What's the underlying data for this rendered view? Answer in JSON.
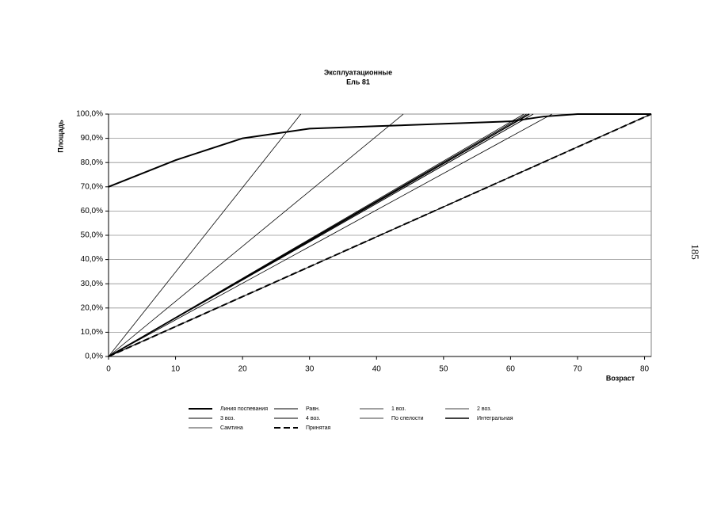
{
  "chart_data": {
    "type": "line",
    "title": "Эксплуатационные",
    "subtitle": "Ель 81",
    "y_label": "Площадь",
    "x_label": "Возраст",
    "xlim": [
      0,
      81
    ],
    "xticks": [
      0,
      10,
      20,
      30,
      40,
      50,
      60,
      70,
      80
    ],
    "ylim": [
      0,
      100
    ],
    "yticks": [
      {
        "value": 0,
        "label": "0,0%"
      },
      {
        "value": 10,
        "label": "10,0%"
      },
      {
        "value": 20,
        "label": "20,0%"
      },
      {
        "value": 30,
        "label": "30,0%"
      },
      {
        "value": 40,
        "label": "40,0%"
      },
      {
        "value": 50,
        "label": "50,0%"
      },
      {
        "value": 60,
        "label": "60,0%"
      },
      {
        "value": 70,
        "label": "70,0%"
      },
      {
        "value": 80,
        "label": "80,0%"
      },
      {
        "value": 90,
        "label": "90,0%"
      },
      {
        "value": 100,
        "label": "100,0%"
      }
    ],
    "grid": true,
    "series": [
      {
        "name": "Линия поспевания",
        "color": "#000000",
        "line_width": 2,
        "dashed": false,
        "x": [
          0,
          10,
          20,
          30,
          40,
          50,
          60,
          65,
          70,
          81
        ],
        "values": [
          70,
          81,
          90,
          94,
          95,
          96,
          97,
          99,
          100,
          100
        ]
      },
      {
        "name": "Равн.",
        "color": "#000000",
        "line_width": 1,
        "dashed": false,
        "x": [
          0,
          81
        ],
        "values": [
          0,
          100
        ]
      },
      {
        "name": "1 воз.",
        "color": "#000000",
        "line_width": 0.8,
        "dashed": false,
        "x": [
          0,
          28.7
        ],
        "values": [
          0,
          100
        ]
      },
      {
        "name": "2 воз.",
        "color": "#000000",
        "line_width": 0.8,
        "dashed": false,
        "x": [
          0,
          44
        ],
        "values": [
          0,
          100
        ]
      },
      {
        "name": "3 воз.",
        "color": "#000000",
        "line_width": 1,
        "dashed": false,
        "x": [
          0,
          62.4
        ],
        "values": [
          0,
          100
        ]
      },
      {
        "name": "4 воз.",
        "color": "#000000",
        "line_width": 1,
        "dashed": false,
        "x": [
          0,
          63.4
        ],
        "values": [
          0,
          100
        ]
      },
      {
        "name": "По спелости",
        "color": "#000000",
        "line_width": 0.8,
        "dashed": false,
        "x": [
          0,
          66.2
        ],
        "values": [
          0,
          100
        ]
      },
      {
        "name": "Интегральная",
        "color": "#000000",
        "line_width": 1.6,
        "dashed": false,
        "x": [
          0,
          62.8
        ],
        "values": [
          0,
          100
        ]
      },
      {
        "name": "Самтина",
        "color": "#000000",
        "line_width": 0.8,
        "dashed": false,
        "x": [
          0,
          62
        ],
        "values": [
          0,
          100
        ]
      },
      {
        "name": "Принятая",
        "color": "#000000",
        "line_width": 2,
        "dashed": true,
        "x": [
          0,
          81
        ],
        "values": [
          0,
          100
        ]
      }
    ]
  },
  "page_number": "185"
}
